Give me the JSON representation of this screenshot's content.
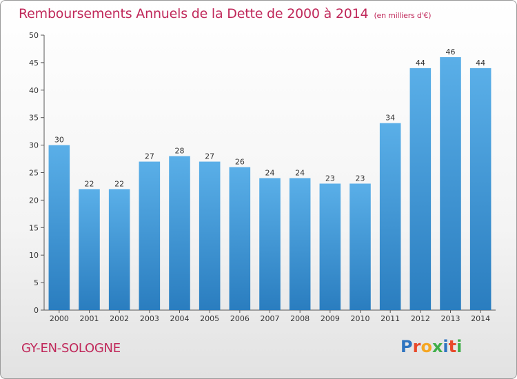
{
  "header": {
    "title": "Remboursements Annuels de la Dette de 2000 à 2014",
    "subtitle": "(en milliers d'€)"
  },
  "footer": {
    "place": "GY-EN-SOLOGNE",
    "logo": "Proxiti"
  },
  "colors": {
    "accent": "#c0285a",
    "bar_top": "#5aafe8",
    "bar_bottom": "#2a7dbf",
    "logo_letters": [
      "#2e74c0",
      "#e8492a",
      "#f5a623",
      "#3fae49",
      "#2e74c0",
      "#e8492a",
      "#3fae49"
    ]
  },
  "chart_data": {
    "type": "bar",
    "title": "Remboursements Annuels de la Dette de 2000 à 2014",
    "subtitle": "(en milliers d'€)",
    "xlabel": "",
    "ylabel": "",
    "categories": [
      "2000",
      "2001",
      "2002",
      "2003",
      "2004",
      "2005",
      "2006",
      "2007",
      "2008",
      "2009",
      "2010",
      "2011",
      "2012",
      "2013",
      "2014"
    ],
    "values": [
      30,
      22,
      22,
      27,
      28,
      27,
      26,
      24,
      24,
      23,
      23,
      34,
      44,
      46,
      44
    ],
    "ylim": [
      0,
      50
    ],
    "yticks": [
      0,
      5,
      10,
      15,
      20,
      25,
      30,
      35,
      40,
      45,
      50
    ],
    "grid": false,
    "data_labels": true
  }
}
